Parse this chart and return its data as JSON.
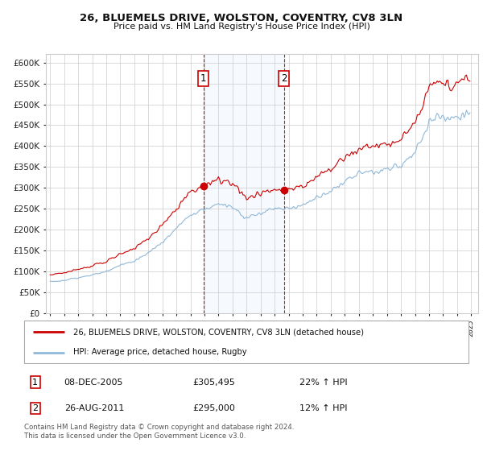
{
  "title1": "26, BLUEMELS DRIVE, WOLSTON, COVENTRY, CV8 3LN",
  "title2": "Price paid vs. HM Land Registry's House Price Index (HPI)",
  "legend_line1": "26, BLUEMELS DRIVE, WOLSTON, COVENTRY, CV8 3LN (detached house)",
  "legend_line2": "HPI: Average price, detached house, Rugby",
  "sale1_date": "08-DEC-2005",
  "sale1_price": 305495,
  "sale1_hpi": "22% ↑ HPI",
  "sale2_date": "26-AUG-2011",
  "sale2_price": 295000,
  "sale2_hpi": "12% ↑ HPI",
  "footnote": "Contains HM Land Registry data © Crown copyright and database right 2024.\nThis data is licensed under the Open Government Licence v3.0.",
  "sale1_x": 2005.92,
  "sale2_x": 2011.65,
  "hpi_color": "#90b8d8",
  "price_color": "#cc0000",
  "shade_color": "#ddeeff",
  "grid_color": "#cccccc",
  "ylim_min": 0,
  "ylim_max": 620000,
  "yticks": [
    0,
    50000,
    100000,
    150000,
    200000,
    250000,
    300000,
    350000,
    400000,
    450000,
    500000,
    550000,
    600000
  ]
}
